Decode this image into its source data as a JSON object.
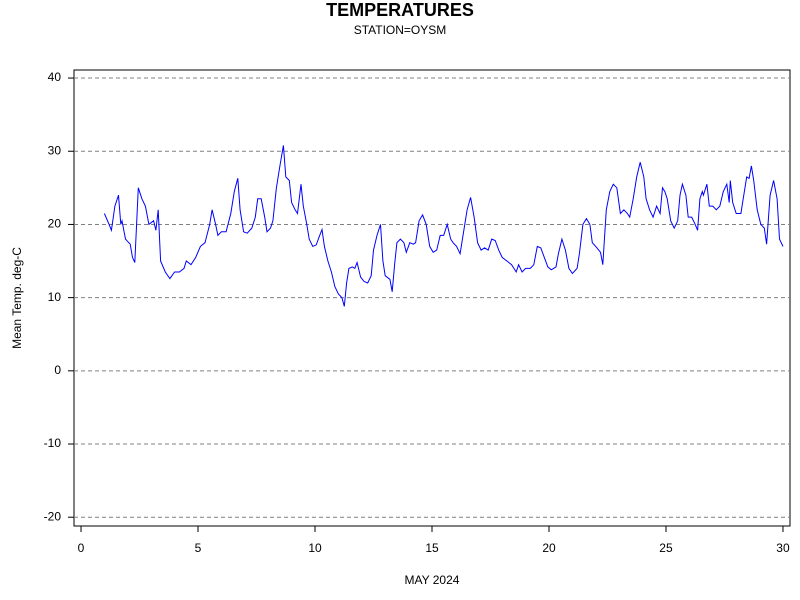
{
  "chart_data": {
    "type": "line",
    "title": "TEMPERATURES",
    "subtitle": "STATION=OYSM",
    "x_label": "MAY 2024",
    "y_label": "Mean Temp. deg-C",
    "xlim": [
      -0.3,
      30.3
    ],
    "xticks": [
      0,
      5,
      10,
      15,
      20,
      25,
      30
    ],
    "ylim": [
      -21.2,
      41.1
    ],
    "yticks": [
      -20,
      -10,
      0,
      10,
      20,
      30,
      40
    ],
    "grid": true,
    "series": [
      {
        "color": "#0000ff",
        "x": [
          1.0,
          1.2,
          1.3,
          1.45,
          1.6,
          1.7,
          1.75,
          1.9,
          2.1,
          2.2,
          2.3,
          2.45,
          2.6,
          2.75,
          2.9,
          3.1,
          3.2,
          3.3,
          3.4,
          3.6,
          3.8,
          4.0,
          4.2,
          4.4,
          4.5,
          4.7,
          4.9,
          5.1,
          5.3,
          5.5,
          5.6,
          5.75,
          5.85,
          6.0,
          6.2,
          6.4,
          6.55,
          6.7,
          6.8,
          6.95,
          7.1,
          7.3,
          7.45,
          7.55,
          7.7,
          7.85,
          7.95,
          8.1,
          8.2,
          8.35,
          8.5,
          8.65,
          8.75,
          8.9,
          9.0,
          9.15,
          9.25,
          9.4,
          9.5,
          9.65,
          9.75,
          9.9,
          10.05,
          10.2,
          10.3,
          10.4,
          10.55,
          10.7,
          10.85,
          11.0,
          11.15,
          11.25,
          11.35,
          11.45,
          11.6,
          11.7,
          11.8,
          11.95,
          12.1,
          12.25,
          12.4,
          12.5,
          12.65,
          12.8,
          12.9,
          13.0,
          13.2,
          13.3,
          13.4,
          13.5,
          13.65,
          13.8,
          13.9,
          14.05,
          14.2,
          14.3,
          14.45,
          14.6,
          14.75,
          14.9,
          15.05,
          15.2,
          15.35,
          15.5,
          15.65,
          15.8,
          15.9,
          16.05,
          16.2,
          16.35,
          16.5,
          16.65,
          16.8,
          16.95,
          17.1,
          17.25,
          17.4,
          17.55,
          17.7,
          17.85,
          18.0,
          18.2,
          18.4,
          18.6,
          18.7,
          18.85,
          19.0,
          19.2,
          19.35,
          19.5,
          19.65,
          19.8,
          19.95,
          20.1,
          20.3,
          20.4,
          20.55,
          20.7,
          20.85,
          21.0,
          21.2,
          21.3,
          21.45,
          21.6,
          21.75,
          21.85,
          22.05,
          22.2,
          22.3,
          22.45,
          22.6,
          22.75,
          22.9,
          23.05,
          23.2,
          23.35,
          23.45,
          23.6,
          23.75,
          23.9,
          24.05,
          24.15,
          24.3,
          24.45,
          24.6,
          24.75,
          24.85,
          24.95,
          25.05,
          25.2,
          25.35,
          25.5,
          25.6,
          25.7,
          25.85,
          25.95,
          26.1,
          26.25,
          26.35,
          26.45,
          26.55,
          26.6,
          26.75,
          26.85,
          27.0,
          27.15,
          27.3,
          27.45,
          27.6,
          27.7,
          27.75,
          27.85,
          28.0,
          28.2,
          28.3,
          28.45,
          28.55,
          28.65,
          28.75,
          28.9,
          29.05,
          29.2,
          29.3,
          29.45,
          29.6,
          29.75,
          29.85,
          30.0
        ],
        "values": [
          21.5,
          20,
          19.2,
          22.5,
          24,
          20,
          20.5,
          18,
          17.3,
          15.5,
          14.8,
          25,
          23.5,
          22.5,
          20,
          20.5,
          19.2,
          22,
          15,
          13.5,
          12.6,
          13.5,
          13.5,
          14,
          15,
          14.5,
          15.5,
          17,
          17.5,
          20,
          22,
          20,
          18.5,
          19,
          19,
          21.5,
          24.5,
          26.3,
          22,
          19,
          18.8,
          19.5,
          21,
          23.5,
          23.5,
          21,
          19,
          19.5,
          20.5,
          25,
          28,
          30.8,
          26.5,
          26,
          23,
          22,
          21.5,
          25.5,
          22.5,
          20,
          18,
          17,
          17.2,
          18.5,
          19.3,
          17,
          15,
          13.5,
          11.5,
          10.5,
          10,
          8.8,
          12,
          14,
          14.2,
          14,
          14.8,
          12.8,
          12.2,
          12,
          13,
          16.5,
          18.5,
          20,
          15,
          13,
          12.5,
          10.8,
          14.5,
          17.5,
          18,
          17.5,
          16.2,
          17.5,
          17.3,
          17.5,
          20.5,
          21.3,
          20,
          17,
          16.2,
          16.5,
          18.5,
          18.5,
          20,
          18,
          17.5,
          17,
          16,
          19,
          22,
          23.7,
          21,
          17.5,
          16.5,
          16.8,
          16.5,
          18,
          17.8,
          16.5,
          15.5,
          15,
          14.5,
          13.5,
          14.5,
          13.5,
          14,
          14,
          14.5,
          17,
          16.8,
          15.5,
          14.2,
          13.8,
          14.2,
          16,
          18,
          16.5,
          14,
          13.3,
          14,
          16,
          20,
          20.8,
          20,
          17.5,
          16.8,
          16.2,
          14.5,
          22,
          24.5,
          25.5,
          25,
          21.5,
          22,
          21.5,
          21,
          23.5,
          26.5,
          28.5,
          26.5,
          23.5,
          22,
          21,
          22.5,
          21.5,
          25,
          24.5,
          23.5,
          20.5,
          19.5,
          20.5,
          24,
          25.5,
          24,
          21,
          21,
          20,
          19.2,
          23.5,
          24.5,
          24,
          25.5,
          22.5,
          22.5,
          22,
          22.5,
          24.5,
          25.5,
          23,
          26,
          23,
          21.5,
          21.5,
          23.5,
          26.5,
          26.3,
          28,
          26,
          22,
          20,
          19.5,
          17.3,
          24,
          26,
          23.5,
          18,
          17
        ]
      }
    ]
  }
}
